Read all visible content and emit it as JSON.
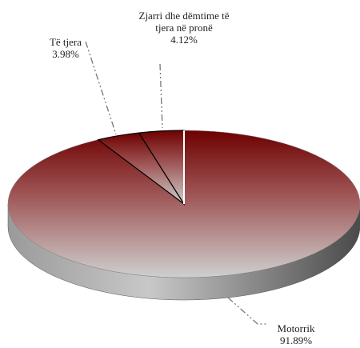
{
  "chart_data": {
    "type": "pie3d",
    "categories": [
      "Motorrik",
      "Të tjera",
      "Zjarri dhe dëmtime të tjera në pronë"
    ],
    "values": [
      91.89,
      3.98,
      4.12
    ],
    "value_labels": [
      "91.89%",
      "3.98%",
      "4.12%"
    ]
  }
}
